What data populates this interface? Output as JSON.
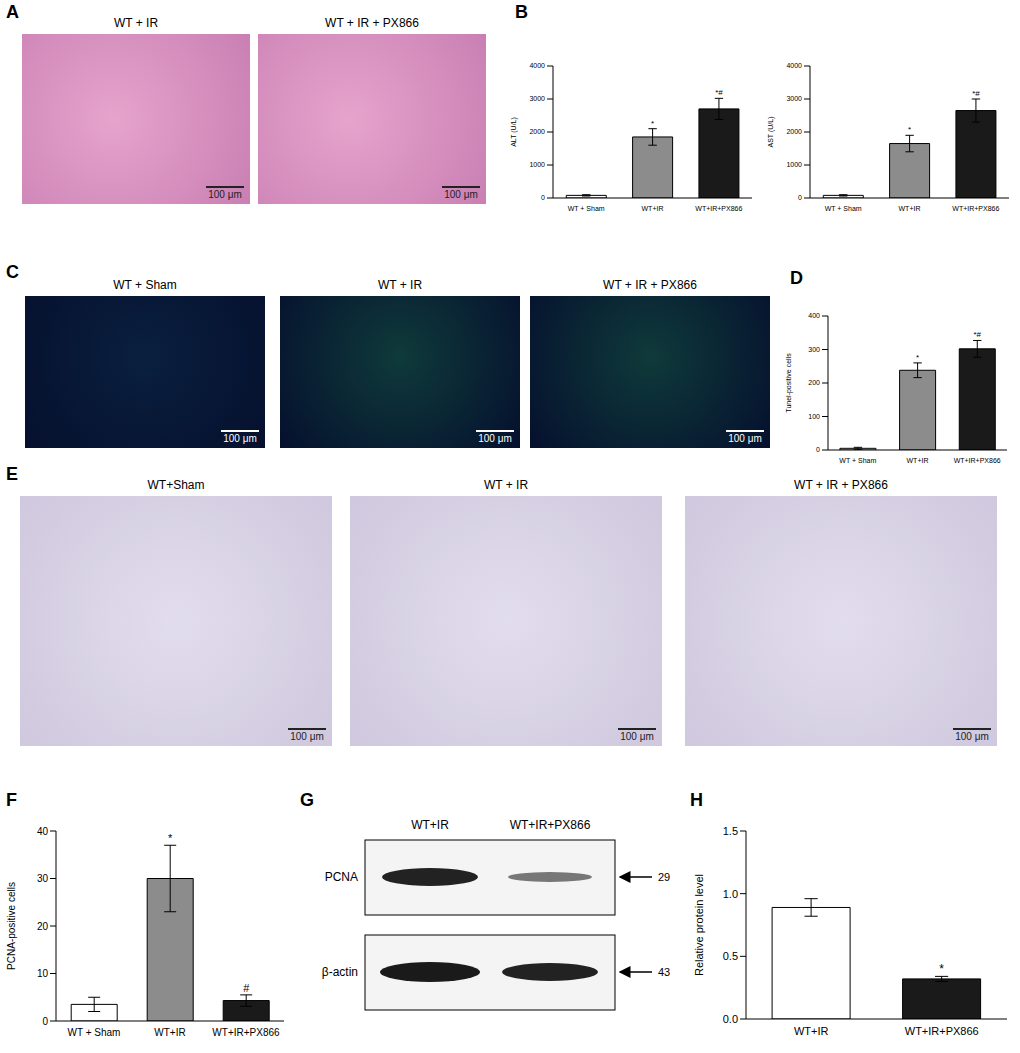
{
  "chart_data": [
    {
      "type": "bar",
      "annotations": [
        "B"
      ],
      "y_label": "ALT (U/L)",
      "categories": [
        "WT + Sham",
        "WT+IR",
        "WT+IR+PX866"
      ],
      "values": [
        80,
        1850,
        2700
      ],
      "errors": [
        20,
        250,
        320
      ],
      "marks": [
        null,
        "*",
        "*#"
      ],
      "colors": [
        "#ffffff",
        "#8c8c8c",
        "#1a1a1a"
      ],
      "ylim": [
        0,
        4000
      ],
      "yticks": [
        0,
        1000,
        2000,
        3000,
        4000
      ],
      "grid": false
    },
    {
      "type": "bar",
      "y_label": "AST (U/L)",
      "categories": [
        "WT + Sham",
        "WT+IR",
        "WT+IR+PX866"
      ],
      "values": [
        80,
        1650,
        2650
      ],
      "errors": [
        20,
        250,
        350
      ],
      "marks": [
        null,
        "*",
        "*#"
      ],
      "colors": [
        "#ffffff",
        "#8c8c8c",
        "#1a1a1a"
      ],
      "ylim": [
        0,
        4000
      ],
      "yticks": [
        0,
        1000,
        2000,
        3000,
        4000
      ],
      "grid": false
    },
    {
      "type": "bar",
      "annotations": [
        "D"
      ],
      "y_label": "Tunel-positive cells",
      "categories": [
        "WT + Sham",
        "WT+IR",
        "WT+IR+PX866"
      ],
      "values": [
        5,
        238,
        302
      ],
      "errors": [
        3,
        22,
        25
      ],
      "marks": [
        null,
        "*",
        "*#"
      ],
      "colors": [
        "#ffffff",
        "#8c8c8c",
        "#1a1a1a"
      ],
      "ylim": [
        0,
        400
      ],
      "yticks": [
        0,
        100,
        200,
        300,
        400
      ],
      "grid": false
    },
    {
      "type": "bar",
      "annotations": [
        "F"
      ],
      "y_label": "PCNA-positive cells",
      "categories": [
        "WT + Sham",
        "WT+IR",
        "WT+IR+PX866"
      ],
      "values": [
        3.5,
        30,
        4.3
      ],
      "errors": [
        1.5,
        7,
        1.2
      ],
      "marks": [
        null,
        "*",
        "#"
      ],
      "colors": [
        "#ffffff",
        "#8c8c8c",
        "#1a1a1a"
      ],
      "ylim": [
        0,
        40
      ],
      "yticks": [
        0,
        10,
        20,
        30,
        40
      ],
      "grid": false
    },
    {
      "type": "bar",
      "annotations": [
        "H"
      ],
      "y_label": "Relative protein level",
      "categories": [
        "WT+IR",
        "WT+IR+PX866"
      ],
      "values": [
        0.89,
        0.32
      ],
      "errors": [
        0.07,
        0.02
      ],
      "marks": [
        null,
        "*"
      ],
      "colors": [
        "#ffffff",
        "#1a1a1a"
      ],
      "ylim": [
        0,
        1.5
      ],
      "yticks": [
        {
          "value": 0,
          "label": "0.0"
        },
        0.5,
        {
          "value": 1,
          "label": "1.0"
        },
        1.5
      ],
      "grid": false
    }
  ],
  "image_panels": [
    {
      "letter": "A",
      "images": [
        {
          "title": "WT + IR",
          "scale_bar": "100 μm"
        },
        {
          "title": "WT + IR + PX866",
          "scale_bar": "100 μm"
        }
      ]
    },
    {
      "letter": "C",
      "images": [
        {
          "title": "WT + Sham",
          "scale_bar": "100 μm"
        },
        {
          "title": "WT + IR",
          "scale_bar": "100 μm"
        },
        {
          "title": "WT + IR + PX866",
          "scale_bar": "100 μm"
        }
      ]
    },
    {
      "letter": "E",
      "images": [
        {
          "title": "WT+Sham",
          "scale_bar": "100 μm"
        },
        {
          "title": "WT + IR",
          "scale_bar": "100 μm"
        },
        {
          "title": "WT + IR + PX866",
          "scale_bar": "100 μm"
        }
      ]
    }
  ],
  "blot": {
    "letter": "G",
    "lanes": [
      "WT+IR",
      "WT+IR+PX866"
    ],
    "rows": [
      {
        "name": "PCNA",
        "size": 29
      },
      {
        "name": "β-actin",
        "size": 43
      }
    ]
  }
}
